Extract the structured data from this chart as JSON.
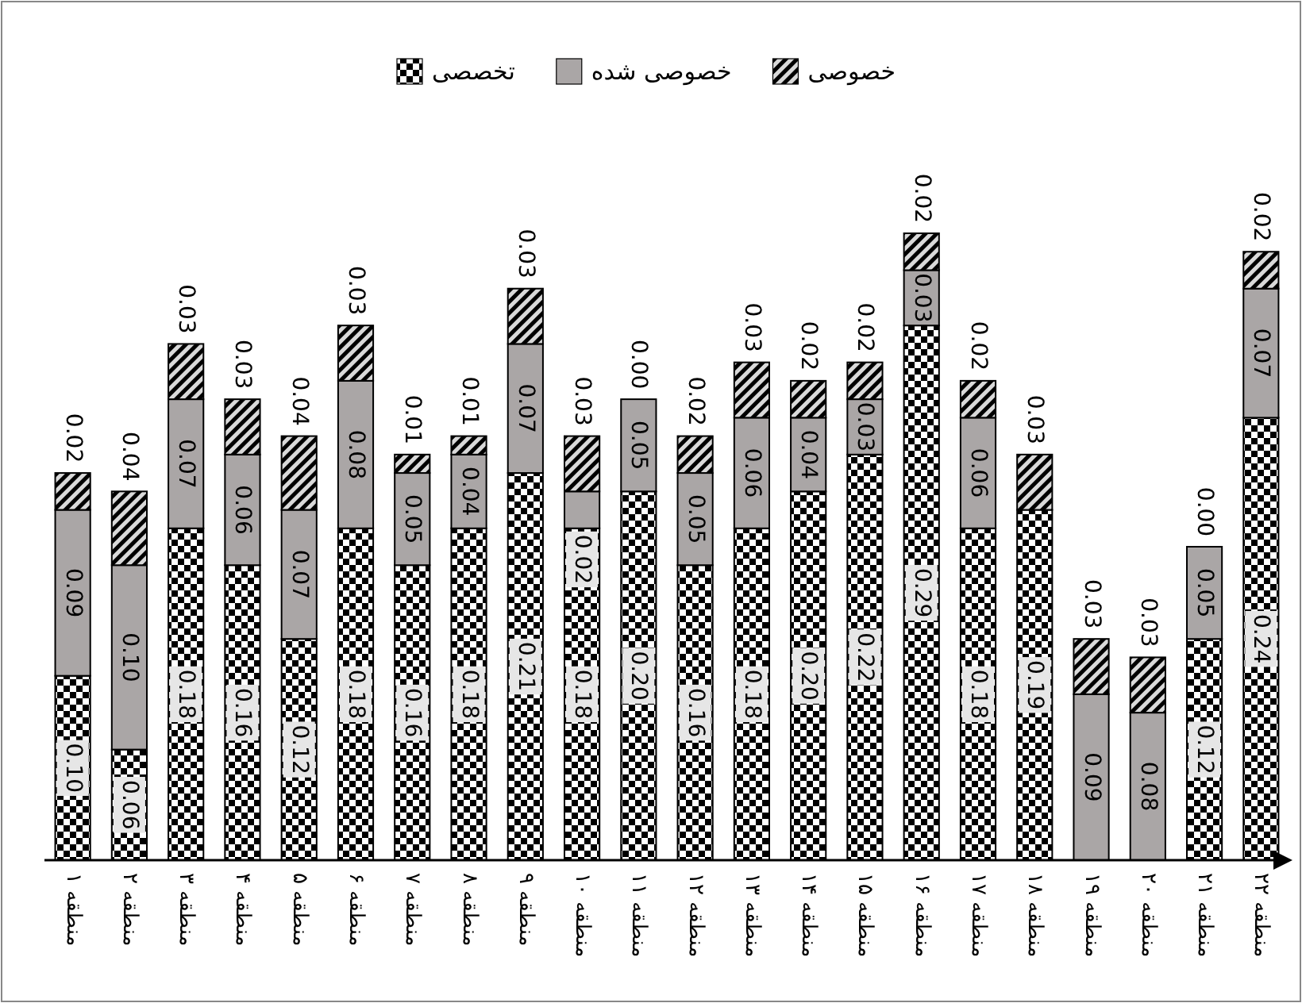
{
  "chart_data": {
    "type": "bar",
    "stacked": true,
    "legend": "top",
    "categories": [
      "منطقه ۱",
      "منطقه ۲",
      "منطقه ۳",
      "منطقه ۴",
      "منطقه ۵",
      "منطقه ۶",
      "منطقه ۷",
      "منطقه ۸",
      "منطقه ۹",
      "منطقه ۱۰",
      "منطقه ۱۱",
      "منطقه ۱۲",
      "منطقه ۱۳",
      "منطقه ۱۴",
      "منطقه ۱۵",
      "منطقه ۱۶",
      "منطقه ۱۷",
      "منطقه ۱۸",
      "منطقه ۱۹",
      "منطقه ۲۰",
      "منطقه ۲۱",
      "منطقه ۲۲"
    ],
    "series": [
      {
        "name": "تخصصی",
        "color": "#000000",
        "values": [
          0.1,
          0.06,
          0.18,
          0.16,
          0.12,
          0.18,
          0.16,
          0.18,
          0.21,
          0.18,
          0.2,
          0.16,
          0.18,
          0.2,
          0.22,
          0.29,
          0.18,
          0.19,
          null,
          null,
          0.12,
          0.24
        ],
        "value_labels": [
          "0.10",
          "0.06",
          "0.18",
          "0.16",
          "0.12",
          "0.18",
          "0.16",
          "0.18",
          "0.21",
          "0.18",
          "0.20",
          "0.16",
          "0.18",
          "0.20",
          "0.22",
          "0.29",
          "0.18",
          "0.19",
          null,
          null,
          "0.12",
          "0.24"
        ]
      },
      {
        "name": "خصوصی شده",
        "color": "#aaa6a6",
        "values": [
          0.09,
          0.1,
          0.07,
          0.06,
          0.07,
          0.08,
          0.05,
          0.04,
          0.07,
          0.02,
          0.05,
          0.05,
          0.06,
          0.04,
          0.03,
          0.03,
          0.06,
          null,
          0.09,
          0.08,
          0.05,
          0.07
        ],
        "value_labels": [
          "0.09",
          "0.10",
          "0.07",
          "0.06",
          "0.07",
          "0.08",
          "0.05",
          "0.04",
          "0.07",
          "0.02",
          "0.05",
          "0.05",
          "0.06",
          "0.04",
          "0.03",
          "0.03",
          "0.06",
          null,
          "0.09",
          "0.08",
          "0.05",
          "0.07"
        ]
      },
      {
        "name": "خصوصی",
        "color": "#000000",
        "values": [
          0.02,
          0.04,
          0.03,
          0.03,
          0.04,
          0.03,
          0.01,
          0.01,
          0.03,
          0.03,
          0.0,
          0.02,
          0.03,
          0.02,
          0.02,
          0.02,
          0.02,
          0.03,
          0.03,
          0.03,
          0.0,
          0.02
        ],
        "value_labels": [
          "0.02",
          "0.04",
          "0.03",
          "0.03",
          "0.04",
          "0.03",
          "0.01",
          "0.01",
          "0.03",
          "0.03",
          "0.00",
          "0.02",
          "0.03",
          "0.02",
          "0.02",
          "0.02",
          "0.02",
          "0.03",
          "0.03",
          "0.03",
          "0.00",
          "0.02"
        ]
      }
    ]
  }
}
